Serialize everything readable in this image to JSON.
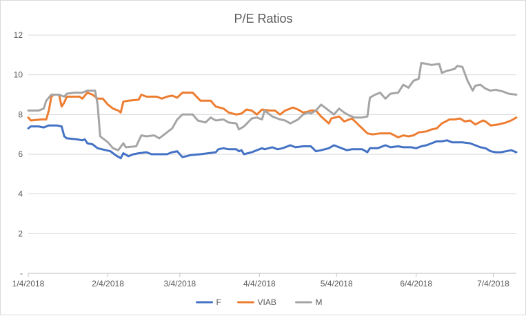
{
  "chart_data": {
    "type": "line",
    "title": "P/E Ratios",
    "xlabel": "",
    "ylabel": "",
    "x_start": "2018-01-04",
    "x_end": "2018-07-13",
    "x_ticks": [
      "1/4/2018",
      "2/4/2018",
      "3/4/2018",
      "4/4/2018",
      "5/4/2018",
      "6/4/2018",
      "7/4/2018"
    ],
    "y_ticks": [
      "-",
      "2",
      "4",
      "6",
      "8",
      "10",
      "12"
    ],
    "ylim": [
      0,
      12
    ],
    "grid": true,
    "legend_position": "bottom",
    "series": [
      {
        "name": "F",
        "color": "#4472c4",
        "points": [
          [
            "2018-01-04",
            7.3
          ],
          [
            "2018-01-05",
            7.4
          ],
          [
            "2018-01-08",
            7.4
          ],
          [
            "2018-01-10",
            7.35
          ],
          [
            "2018-01-12",
            7.45
          ],
          [
            "2018-01-15",
            7.45
          ],
          [
            "2018-01-17",
            7.4
          ],
          [
            "2018-01-18",
            6.9
          ],
          [
            "2018-01-19",
            6.8
          ],
          [
            "2018-01-23",
            6.75
          ],
          [
            "2018-01-25",
            6.7
          ],
          [
            "2018-01-26",
            6.75
          ],
          [
            "2018-01-27",
            6.55
          ],
          [
            "2018-01-29",
            6.5
          ],
          [
            "2018-01-31",
            6.3
          ],
          [
            "2018-02-05",
            6.15
          ],
          [
            "2018-02-07",
            5.95
          ],
          [
            "2018-02-09",
            5.8
          ],
          [
            "2018-02-10",
            6.05
          ],
          [
            "2018-02-12",
            5.9
          ],
          [
            "2018-02-14",
            6.0
          ],
          [
            "2018-02-16",
            6.05
          ],
          [
            "2018-02-19",
            6.1
          ],
          [
            "2018-02-21",
            6.0
          ],
          [
            "2018-02-23",
            6.0
          ],
          [
            "2018-02-27",
            6.0
          ],
          [
            "2018-03-01",
            6.1
          ],
          [
            "2018-03-03",
            6.15
          ],
          [
            "2018-03-05",
            5.85
          ],
          [
            "2018-03-08",
            5.95
          ],
          [
            "2018-03-12",
            6.0
          ],
          [
            "2018-03-15",
            6.05
          ],
          [
            "2018-03-18",
            6.1
          ],
          [
            "2018-03-19",
            6.25
          ],
          [
            "2018-03-21",
            6.3
          ],
          [
            "2018-03-23",
            6.25
          ],
          [
            "2018-03-26",
            6.25
          ],
          [
            "2018-03-27",
            6.15
          ],
          [
            "2018-03-28",
            6.2
          ],
          [
            "2018-03-29",
            6.0
          ],
          [
            "2018-04-01",
            6.1
          ],
          [
            "2018-04-03",
            6.2
          ],
          [
            "2018-04-05",
            6.3
          ],
          [
            "2018-04-06",
            6.25
          ],
          [
            "2018-04-09",
            6.35
          ],
          [
            "2018-04-11",
            6.25
          ],
          [
            "2018-04-13",
            6.3
          ],
          [
            "2018-04-16",
            6.45
          ],
          [
            "2018-04-18",
            6.35
          ],
          [
            "2018-04-21",
            6.4
          ],
          [
            "2018-04-24",
            6.4
          ],
          [
            "2018-04-26",
            6.15
          ],
          [
            "2018-04-28",
            6.2
          ],
          [
            "2018-05-01",
            6.3
          ],
          [
            "2018-05-03",
            6.45
          ],
          [
            "2018-05-06",
            6.3
          ],
          [
            "2018-05-08",
            6.2
          ],
          [
            "2018-05-10",
            6.25
          ],
          [
            "2018-05-14",
            6.25
          ],
          [
            "2018-05-16",
            6.1
          ],
          [
            "2018-05-17",
            6.3
          ],
          [
            "2018-05-20",
            6.3
          ],
          [
            "2018-05-23",
            6.45
          ],
          [
            "2018-05-25",
            6.35
          ],
          [
            "2018-05-28",
            6.4
          ],
          [
            "2018-05-30",
            6.35
          ],
          [
            "2018-06-02",
            6.35
          ],
          [
            "2018-06-04",
            6.3
          ],
          [
            "2018-06-06",
            6.4
          ],
          [
            "2018-06-08",
            6.45
          ],
          [
            "2018-06-10",
            6.55
          ],
          [
            "2018-06-12",
            6.65
          ],
          [
            "2018-06-14",
            6.65
          ],
          [
            "2018-06-16",
            6.7
          ],
          [
            "2018-06-18",
            6.6
          ],
          [
            "2018-06-20",
            6.6
          ],
          [
            "2018-06-22",
            6.6
          ],
          [
            "2018-06-25",
            6.55
          ],
          [
            "2018-06-27",
            6.45
          ],
          [
            "2018-06-29",
            6.35
          ],
          [
            "2018-07-01",
            6.3
          ],
          [
            "2018-07-03",
            6.15
          ],
          [
            "2018-07-05",
            6.1
          ],
          [
            "2018-07-07",
            6.1
          ],
          [
            "2018-07-09",
            6.15
          ],
          [
            "2018-07-11",
            6.2
          ],
          [
            "2018-07-13",
            6.1
          ]
        ]
      },
      {
        "name": "VIAB",
        "color": "#ed7d31",
        "points": [
          [
            "2018-01-04",
            7.85
          ],
          [
            "2018-01-05",
            7.7
          ],
          [
            "2018-01-09",
            7.75
          ],
          [
            "2018-01-11",
            7.75
          ],
          [
            "2018-01-12",
            8.2
          ],
          [
            "2018-01-13",
            8.9
          ],
          [
            "2018-01-14",
            9.0
          ],
          [
            "2018-01-16",
            9.0
          ],
          [
            "2018-01-17",
            8.4
          ],
          [
            "2018-01-18",
            8.6
          ],
          [
            "2018-01-19",
            8.9
          ],
          [
            "2018-01-22",
            8.9
          ],
          [
            "2018-01-24",
            8.9
          ],
          [
            "2018-01-25",
            8.8
          ],
          [
            "2018-01-27",
            9.1
          ],
          [
            "2018-01-29",
            9.0
          ],
          [
            "2018-01-31",
            8.8
          ],
          [
            "2018-02-02",
            8.8
          ],
          [
            "2018-02-04",
            8.5
          ],
          [
            "2018-02-06",
            8.3
          ],
          [
            "2018-02-08",
            8.2
          ],
          [
            "2018-02-09",
            8.1
          ],
          [
            "2018-02-10",
            8.65
          ],
          [
            "2018-02-12",
            8.7
          ],
          [
            "2018-02-16",
            8.75
          ],
          [
            "2018-02-17",
            9.0
          ],
          [
            "2018-02-19",
            8.9
          ],
          [
            "2018-02-23",
            8.9
          ],
          [
            "2018-02-25",
            8.8
          ],
          [
            "2018-02-27",
            8.9
          ],
          [
            "2018-03-01",
            8.95
          ],
          [
            "2018-03-03",
            8.85
          ],
          [
            "2018-03-05",
            9.1
          ],
          [
            "2018-03-09",
            9.1
          ],
          [
            "2018-03-12",
            8.7
          ],
          [
            "2018-03-14",
            8.7
          ],
          [
            "2018-03-16",
            8.7
          ],
          [
            "2018-03-18",
            8.4
          ],
          [
            "2018-03-21",
            8.3
          ],
          [
            "2018-03-23",
            8.1
          ],
          [
            "2018-03-26",
            8.0
          ],
          [
            "2018-03-28",
            8.05
          ],
          [
            "2018-03-30",
            8.25
          ],
          [
            "2018-04-01",
            8.2
          ],
          [
            "2018-04-03",
            8.0
          ],
          [
            "2018-04-05",
            8.25
          ],
          [
            "2018-04-08",
            8.2
          ],
          [
            "2018-04-10",
            8.2
          ],
          [
            "2018-04-12",
            8.0
          ],
          [
            "2018-04-14",
            8.2
          ],
          [
            "2018-04-17",
            8.35
          ],
          [
            "2018-04-19",
            8.25
          ],
          [
            "2018-04-21",
            8.1
          ],
          [
            "2018-04-23",
            8.15
          ],
          [
            "2018-04-24",
            8.2
          ],
          [
            "2018-04-26",
            8.2
          ],
          [
            "2018-04-28",
            7.9
          ],
          [
            "2018-05-01",
            7.55
          ],
          [
            "2018-05-02",
            7.8
          ],
          [
            "2018-05-05",
            7.9
          ],
          [
            "2018-05-07",
            7.65
          ],
          [
            "2018-05-09",
            7.75
          ],
          [
            "2018-05-10",
            7.8
          ],
          [
            "2018-05-12",
            7.55
          ],
          [
            "2018-05-14",
            7.3
          ],
          [
            "2018-05-16",
            7.05
          ],
          [
            "2018-05-18",
            7.0
          ],
          [
            "2018-05-21",
            7.05
          ],
          [
            "2018-05-23",
            7.05
          ],
          [
            "2018-05-25",
            7.05
          ],
          [
            "2018-05-28",
            6.85
          ],
          [
            "2018-05-30",
            6.95
          ],
          [
            "2018-06-01",
            6.9
          ],
          [
            "2018-06-03",
            6.95
          ],
          [
            "2018-06-05",
            7.1
          ],
          [
            "2018-06-08",
            7.15
          ],
          [
            "2018-06-10",
            7.25
          ],
          [
            "2018-06-12",
            7.3
          ],
          [
            "2018-06-14",
            7.55
          ],
          [
            "2018-06-17",
            7.75
          ],
          [
            "2018-06-19",
            7.75
          ],
          [
            "2018-06-21",
            7.8
          ],
          [
            "2018-06-23",
            7.65
          ],
          [
            "2018-06-25",
            7.7
          ],
          [
            "2018-06-27",
            7.5
          ],
          [
            "2018-06-30",
            7.7
          ],
          [
            "2018-07-01",
            7.65
          ],
          [
            "2018-07-03",
            7.45
          ],
          [
            "2018-07-06",
            7.5
          ],
          [
            "2018-07-09",
            7.6
          ],
          [
            "2018-07-11",
            7.7
          ],
          [
            "2018-07-13",
            7.85
          ]
        ]
      },
      {
        "name": "M",
        "color": "#a5a5a5",
        "points": [
          [
            "2018-01-04",
            8.2
          ],
          [
            "2018-01-08",
            8.2
          ],
          [
            "2018-01-10",
            8.3
          ],
          [
            "2018-01-11",
            8.7
          ],
          [
            "2018-01-13",
            9.0
          ],
          [
            "2018-01-16",
            9.0
          ],
          [
            "2018-01-18",
            8.9
          ],
          [
            "2018-01-19",
            9.05
          ],
          [
            "2018-01-22",
            9.1
          ],
          [
            "2018-01-25",
            9.1
          ],
          [
            "2018-01-27",
            9.2
          ],
          [
            "2018-01-30",
            9.2
          ],
          [
            "2018-01-31",
            8.5
          ],
          [
            "2018-02-01",
            6.9
          ],
          [
            "2018-02-04",
            6.6
          ],
          [
            "2018-02-06",
            6.3
          ],
          [
            "2018-02-08",
            6.2
          ],
          [
            "2018-02-10",
            6.55
          ],
          [
            "2018-02-11",
            6.35
          ],
          [
            "2018-02-15",
            6.4
          ],
          [
            "2018-02-17",
            6.95
          ],
          [
            "2018-02-19",
            6.9
          ],
          [
            "2018-02-22",
            6.95
          ],
          [
            "2018-02-24",
            6.8
          ],
          [
            "2018-02-27",
            7.1
          ],
          [
            "2018-03-01",
            7.3
          ],
          [
            "2018-03-03",
            7.75
          ],
          [
            "2018-03-05",
            8.0
          ],
          [
            "2018-03-09",
            8.0
          ],
          [
            "2018-03-11",
            7.7
          ],
          [
            "2018-03-14",
            7.6
          ],
          [
            "2018-03-16",
            7.85
          ],
          [
            "2018-03-18",
            7.7
          ],
          [
            "2018-03-21",
            7.75
          ],
          [
            "2018-03-23",
            7.6
          ],
          [
            "2018-03-26",
            7.55
          ],
          [
            "2018-03-27",
            7.25
          ],
          [
            "2018-03-29",
            7.4
          ],
          [
            "2018-04-01",
            7.8
          ],
          [
            "2018-04-03",
            7.85
          ],
          [
            "2018-04-05",
            7.75
          ],
          [
            "2018-04-06",
            8.2
          ],
          [
            "2018-04-09",
            7.9
          ],
          [
            "2018-04-12",
            7.75
          ],
          [
            "2018-04-14",
            7.7
          ],
          [
            "2018-04-16",
            7.55
          ],
          [
            "2018-04-19",
            7.75
          ],
          [
            "2018-04-21",
            8.0
          ],
          [
            "2018-04-23",
            8.1
          ],
          [
            "2018-04-24",
            8.05
          ],
          [
            "2018-04-26",
            8.2
          ],
          [
            "2018-04-28",
            8.5
          ],
          [
            "2018-05-01",
            8.2
          ],
          [
            "2018-05-03",
            8.0
          ],
          [
            "2018-05-05",
            8.3
          ],
          [
            "2018-05-07",
            8.1
          ],
          [
            "2018-05-09",
            7.95
          ],
          [
            "2018-05-11",
            7.85
          ],
          [
            "2018-05-14",
            7.85
          ],
          [
            "2018-05-16",
            7.9
          ],
          [
            "2018-05-17",
            8.85
          ],
          [
            "2018-05-19",
            9.0
          ],
          [
            "2018-05-21",
            9.1
          ],
          [
            "2018-05-23",
            8.8
          ],
          [
            "2018-05-25",
            9.05
          ],
          [
            "2018-05-28",
            9.1
          ],
          [
            "2018-05-30",
            9.5
          ],
          [
            "2018-06-01",
            9.35
          ],
          [
            "2018-06-03",
            9.7
          ],
          [
            "2018-06-05",
            9.8
          ],
          [
            "2018-06-06",
            10.6
          ],
          [
            "2018-06-08",
            10.55
          ],
          [
            "2018-06-10",
            10.5
          ],
          [
            "2018-06-13",
            10.55
          ],
          [
            "2018-06-14",
            10.1
          ],
          [
            "2018-06-16",
            10.2
          ],
          [
            "2018-06-19",
            10.3
          ],
          [
            "2018-06-20",
            10.45
          ],
          [
            "2018-06-22",
            10.4
          ],
          [
            "2018-06-24",
            9.7
          ],
          [
            "2018-06-26",
            9.2
          ],
          [
            "2018-06-27",
            9.45
          ],
          [
            "2018-06-29",
            9.5
          ],
          [
            "2018-07-01",
            9.3
          ],
          [
            "2018-07-03",
            9.2
          ],
          [
            "2018-07-05",
            9.25
          ],
          [
            "2018-07-08",
            9.15
          ],
          [
            "2018-07-10",
            9.05
          ],
          [
            "2018-07-13",
            9.0
          ]
        ]
      }
    ]
  }
}
